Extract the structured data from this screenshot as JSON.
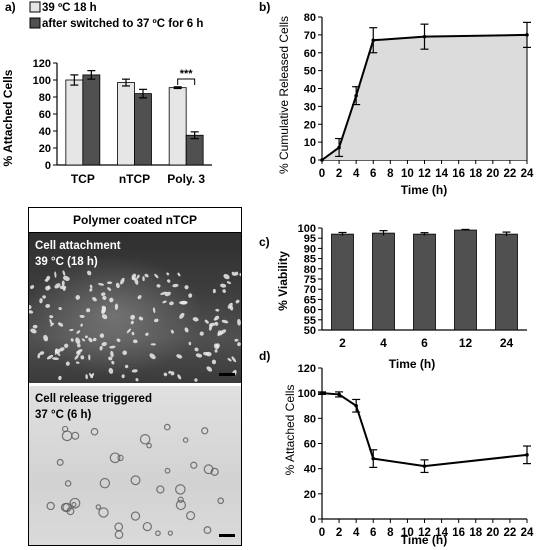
{
  "colors": {
    "light_bar": "#e6e6e6",
    "dark_bar": "#505050",
    "area_fill": "#dcdcdc",
    "line": "#000000"
  },
  "photo_panel": {
    "title": "Polymer coated nTCP",
    "top_label_1": "Cell attachment",
    "top_label_2": "39 °C (18 h)",
    "bottom_label_1": "Cell release triggered",
    "bottom_label_2": "37 °C (6 h)"
  },
  "chart_data": [
    {
      "panel": "a)",
      "type": "bar",
      "legend_position": "top-left",
      "categories": [
        "TCP",
        "nTCP",
        "Poly. 3"
      ],
      "series": [
        {
          "name": "39 ºC 18 h",
          "values": [
            100,
            97,
            91
          ],
          "errors": [
            6,
            4,
            1
          ]
        },
        {
          "name": "after switched to 37 ºC  for 6 h",
          "values": [
            106,
            84,
            35
          ],
          "errors": [
            5,
            5,
            4
          ]
        }
      ],
      "annotation": "***",
      "ylabel": "% Attached Cells",
      "ylim": [
        0,
        120
      ],
      "yticks": [
        0,
        20,
        40,
        60,
        80,
        100,
        120
      ]
    },
    {
      "panel": "b)",
      "type": "area",
      "x": [
        0,
        2,
        4,
        6,
        12,
        24
      ],
      "y": [
        0,
        7,
        36,
        67,
        69,
        70
      ],
      "errors": [
        0,
        5,
        5,
        7,
        7,
        7
      ],
      "xlabel": "Time (h)",
      "ylabel": "% Cumulative Released Cells",
      "xlim": [
        0,
        24
      ],
      "ylim": [
        0,
        80
      ],
      "xticks": [
        0,
        2,
        4,
        6,
        8,
        10,
        12,
        14,
        16,
        18,
        20,
        22,
        24
      ],
      "yticks": [
        0,
        10,
        20,
        30,
        40,
        50,
        60,
        70,
        80
      ]
    },
    {
      "panel": "c)",
      "type": "bar",
      "categories": [
        "2",
        "4",
        "6",
        "12",
        "24"
      ],
      "values": [
        97,
        97.5,
        97,
        99,
        97
      ],
      "errors": [
        0.8,
        1.2,
        0.7,
        0.3,
        1
      ],
      "xlabel": "Time (h)",
      "ylabel": "% Viability",
      "ylim": [
        50,
        100
      ],
      "yticks": [
        50,
        55,
        60,
        65,
        70,
        75,
        80,
        85,
        90,
        95,
        100
      ]
    },
    {
      "panel": "d)",
      "type": "line",
      "x": [
        0,
        2,
        4,
        6,
        12,
        24
      ],
      "y": [
        100,
        99,
        90,
        48,
        42,
        51
      ],
      "errors": [
        1,
        2,
        5,
        7,
        5,
        7
      ],
      "xlabel": "Time (h)",
      "ylabel": "% Attached Cells",
      "xlim": [
        0,
        24
      ],
      "ylim": [
        0,
        120
      ],
      "xticks": [
        0,
        2,
        4,
        6,
        8,
        10,
        12,
        14,
        16,
        18,
        20,
        22,
        24
      ],
      "yticks": [
        0,
        20,
        40,
        60,
        80,
        100,
        120
      ]
    }
  ]
}
